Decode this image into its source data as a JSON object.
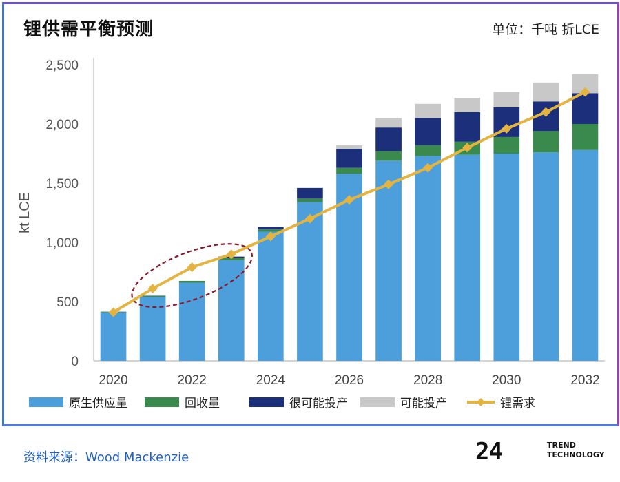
{
  "title": "锂供需平衡预测",
  "unit_label": "单位：千吨 折LCE",
  "source": "资料来源：Wood Mackenzie",
  "logo": {
    "number": "24",
    "line1": "TREND",
    "line2": "TECHNOLOGY"
  },
  "colors": {
    "primary_supply": "#4d9fdc",
    "recycling": "#3a8a4e",
    "highly_probable": "#1c2f7a",
    "probable": "#c8c8c8",
    "demand": "#e3b441"
  },
  "chart_data": {
    "type": "bar",
    "stacked": true,
    "title": "锂供需平衡预测",
    "ylabel": "kt LCE",
    "xlabel": "",
    "ylim": [
      0,
      2500
    ],
    "yticks": [
      0,
      500,
      1000,
      1500,
      2000,
      2500
    ],
    "ytick_labels": [
      "0",
      "500",
      "1,000",
      "1,500",
      "2,000",
      "2,500"
    ],
    "categories": [
      "2020",
      "2021",
      "2022",
      "2023",
      "2024",
      "2025",
      "2026",
      "2027",
      "2028",
      "2029",
      "2030",
      "2031",
      "2032"
    ],
    "xtick_labels": [
      "2020",
      "",
      "2022",
      "",
      "2024",
      "",
      "2026",
      "",
      "2028",
      "",
      "2030",
      "",
      "2032"
    ],
    "series": [
      {
        "name": "原生供应量",
        "key": "primary_supply",
        "values": [
          410,
          540,
          660,
          850,
          1090,
          1340,
          1580,
          1690,
          1730,
          1740,
          1750,
          1760,
          1780
        ]
      },
      {
        "name": "回收量",
        "key": "recycling",
        "values": [
          5,
          10,
          15,
          20,
          20,
          30,
          50,
          80,
          90,
          110,
          140,
          180,
          220
        ]
      },
      {
        "name": "很可能投产",
        "key": "highly_probable",
        "values": [
          0,
          0,
          0,
          10,
          20,
          90,
          160,
          200,
          230,
          250,
          250,
          250,
          260
        ]
      },
      {
        "name": "可能投产",
        "key": "probable",
        "values": [
          0,
          0,
          0,
          0,
          0,
          0,
          30,
          80,
          120,
          120,
          130,
          160,
          160
        ]
      }
    ],
    "line_series": {
      "name": "锂需求",
      "key": "demand",
      "values": [
        410,
        610,
        790,
        900,
        1050,
        1200,
        1360,
        1490,
        1630,
        1800,
        1960,
        2100,
        2270
      ]
    },
    "legend": [
      "原生供应量",
      "回收量",
      "很可能投产",
      "可能投产",
      "锂需求"
    ],
    "legend_position": "bottom",
    "annotations": [
      {
        "type": "ellipse",
        "target_categories": [
          "2021",
          "2022",
          "2023"
        ],
        "style": "dashed",
        "color": "#8b1a2b"
      }
    ]
  }
}
